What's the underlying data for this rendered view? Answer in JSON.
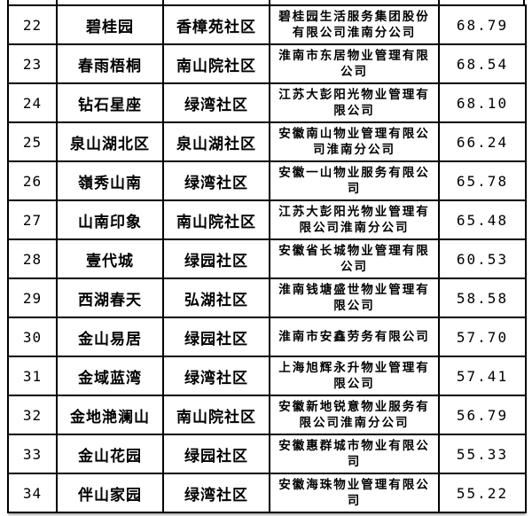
{
  "page": {
    "background": "#ffffff",
    "border_color": "#000000",
    "text_color": "#000000"
  },
  "table": {
    "column_keys": [
      "rank",
      "name",
      "community",
      "company",
      "score"
    ],
    "rows": [
      {
        "rank": "22",
        "name": "碧桂园",
        "community": "香樟苑社区",
        "company": "碧桂园生活服务集团股份有限公司淮南分公司",
        "score": "68.79"
      },
      {
        "rank": "23",
        "name": "春雨梧桐",
        "community": "南山院社区",
        "company": "淮南市东居物业管理有限公司",
        "score": "68.54"
      },
      {
        "rank": "24",
        "name": "钻石星座",
        "community": "绿湾社区",
        "company": "江苏大彭阳光物业管理有限公司",
        "score": "68.10"
      },
      {
        "rank": "25",
        "name": "泉山湖北区",
        "community": "泉山湖社区",
        "company": "安徽南山物业管理有限公司淮南分公司",
        "score": "66.24"
      },
      {
        "rank": "26",
        "name": "嶺秀山南",
        "community": "绿湾社区",
        "company": "安徽一山物业服务有限公司",
        "score": "65.78"
      },
      {
        "rank": "27",
        "name": "山南印象",
        "community": "南山院社区",
        "company": "江苏大彭阳光物业管理有限公司淮南分公司",
        "score": "65.48"
      },
      {
        "rank": "28",
        "name": "壹代城",
        "community": "绿园社区",
        "company": "安徽省长城物业管理有限公司",
        "score": "60.53"
      },
      {
        "rank": "29",
        "name": "西湖春天",
        "community": "弘湖社区",
        "company": "淮南钱塘盛世物业管理有限公司",
        "score": "58.58"
      },
      {
        "rank": "30",
        "name": "金山易居",
        "community": "绿园社区",
        "company": "淮南市安鑫劳务有限公司",
        "score": "57.70"
      },
      {
        "rank": "31",
        "name": "金域蓝湾",
        "community": "绿湾社区",
        "company": "上海旭辉永升物业管理有限公司",
        "score": "57.41"
      },
      {
        "rank": "32",
        "name": "金地滟澜山",
        "community": "南山院社区",
        "company": "安徽新地锐意物业服务有限公司淮南分公司",
        "score": "56.79"
      },
      {
        "rank": "33",
        "name": "金山花园",
        "community": "绿园社区",
        "company": "安徽惠群城市物业有限公司",
        "score": "55.33"
      },
      {
        "rank": "34",
        "name": "伴山家园",
        "community": "绿湾社区",
        "company": "安徽海珠物业管理有限公司",
        "score": "55.22"
      }
    ]
  }
}
